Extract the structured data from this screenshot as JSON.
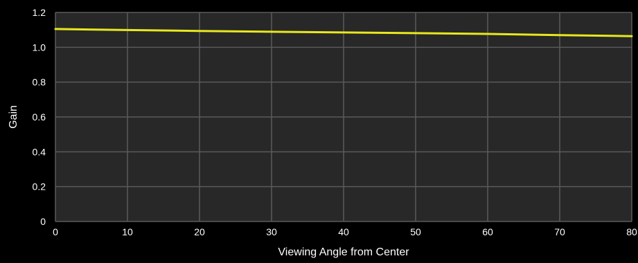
{
  "chart_data": {
    "type": "line",
    "title": "",
    "xlabel": "Viewing Angle from Center",
    "ylabel": "Gain",
    "x_ticks": [
      0,
      10,
      20,
      30,
      40,
      50,
      60,
      70,
      80
    ],
    "y_ticks": [
      0,
      0.2,
      0.4,
      0.6,
      0.8,
      1.0,
      1.2
    ],
    "y_tick_labels": [
      "0",
      "0.2",
      "0.4",
      "0.6",
      "0.8",
      "1.0",
      "1.2"
    ],
    "xlim": [
      0,
      80
    ],
    "ylim": [
      0,
      1.2
    ],
    "grid": true,
    "legend": "none",
    "series": [
      {
        "color": "#e8e81e",
        "x": [
          0,
          10,
          20,
          30,
          40,
          50,
          60,
          70,
          80
        ],
        "y": [
          1.105,
          1.099,
          1.094,
          1.089,
          1.085,
          1.081,
          1.077,
          1.07,
          1.064
        ]
      }
    ],
    "colors": {
      "background": "#000000",
      "plot_area": "#282828",
      "grid": "#5a5a5a",
      "text": "#ffffff"
    }
  }
}
